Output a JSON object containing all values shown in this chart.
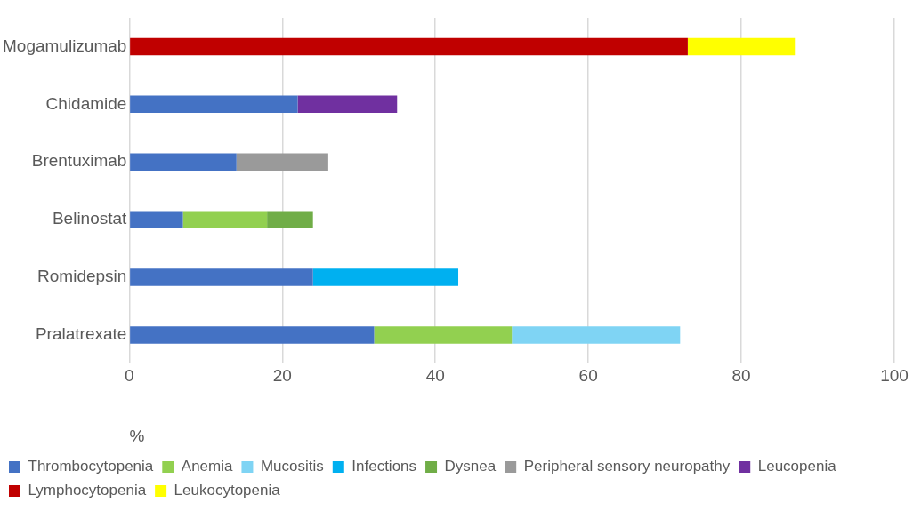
{
  "chart_data": {
    "type": "bar",
    "orientation": "horizontal",
    "stacked": true,
    "xlabel": "%",
    "categories": [
      "Mogamulizumab",
      "Chidamide",
      "Brentuximab",
      "Belinostat",
      "Romidepsin",
      "Pralatrexate"
    ],
    "series": [
      {
        "name": "Thrombocytopenia",
        "color": "#4472c4",
        "values": [
          null,
          22,
          14,
          7,
          24,
          32
        ]
      },
      {
        "name": "Anemia",
        "color": "#92d050",
        "values": [
          null,
          null,
          null,
          11,
          null,
          18
        ]
      },
      {
        "name": "Mucositis",
        "color": "#7fd4f4",
        "values": [
          null,
          null,
          null,
          null,
          null,
          22
        ]
      },
      {
        "name": "Infections",
        "color": "#00b0f0",
        "values": [
          null,
          null,
          null,
          null,
          19,
          null
        ]
      },
      {
        "name": "Dysnea",
        "color": "#70ad47",
        "values": [
          null,
          null,
          null,
          6,
          null,
          null
        ]
      },
      {
        "name": "Peripheral sensory neuropathy",
        "color": "#9a9a9a",
        "values": [
          null,
          null,
          12,
          null,
          null,
          null
        ]
      },
      {
        "name": "Leucopenia",
        "color": "#7030a0",
        "values": [
          null,
          13,
          null,
          null,
          null,
          null
        ]
      },
      {
        "name": "Lymphocytopenia",
        "color": "#c00000",
        "values": [
          73,
          null,
          null,
          null,
          null,
          null
        ]
      },
      {
        "name": "Leukocytopenia",
        "color": "#ffff00",
        "values": [
          14,
          null,
          null,
          null,
          null,
          null
        ]
      }
    ],
    "xlim": [
      0,
      100
    ],
    "xticks": [
      0,
      20,
      40,
      60,
      80,
      100
    ],
    "grid": "x",
    "legend": "bottom"
  }
}
